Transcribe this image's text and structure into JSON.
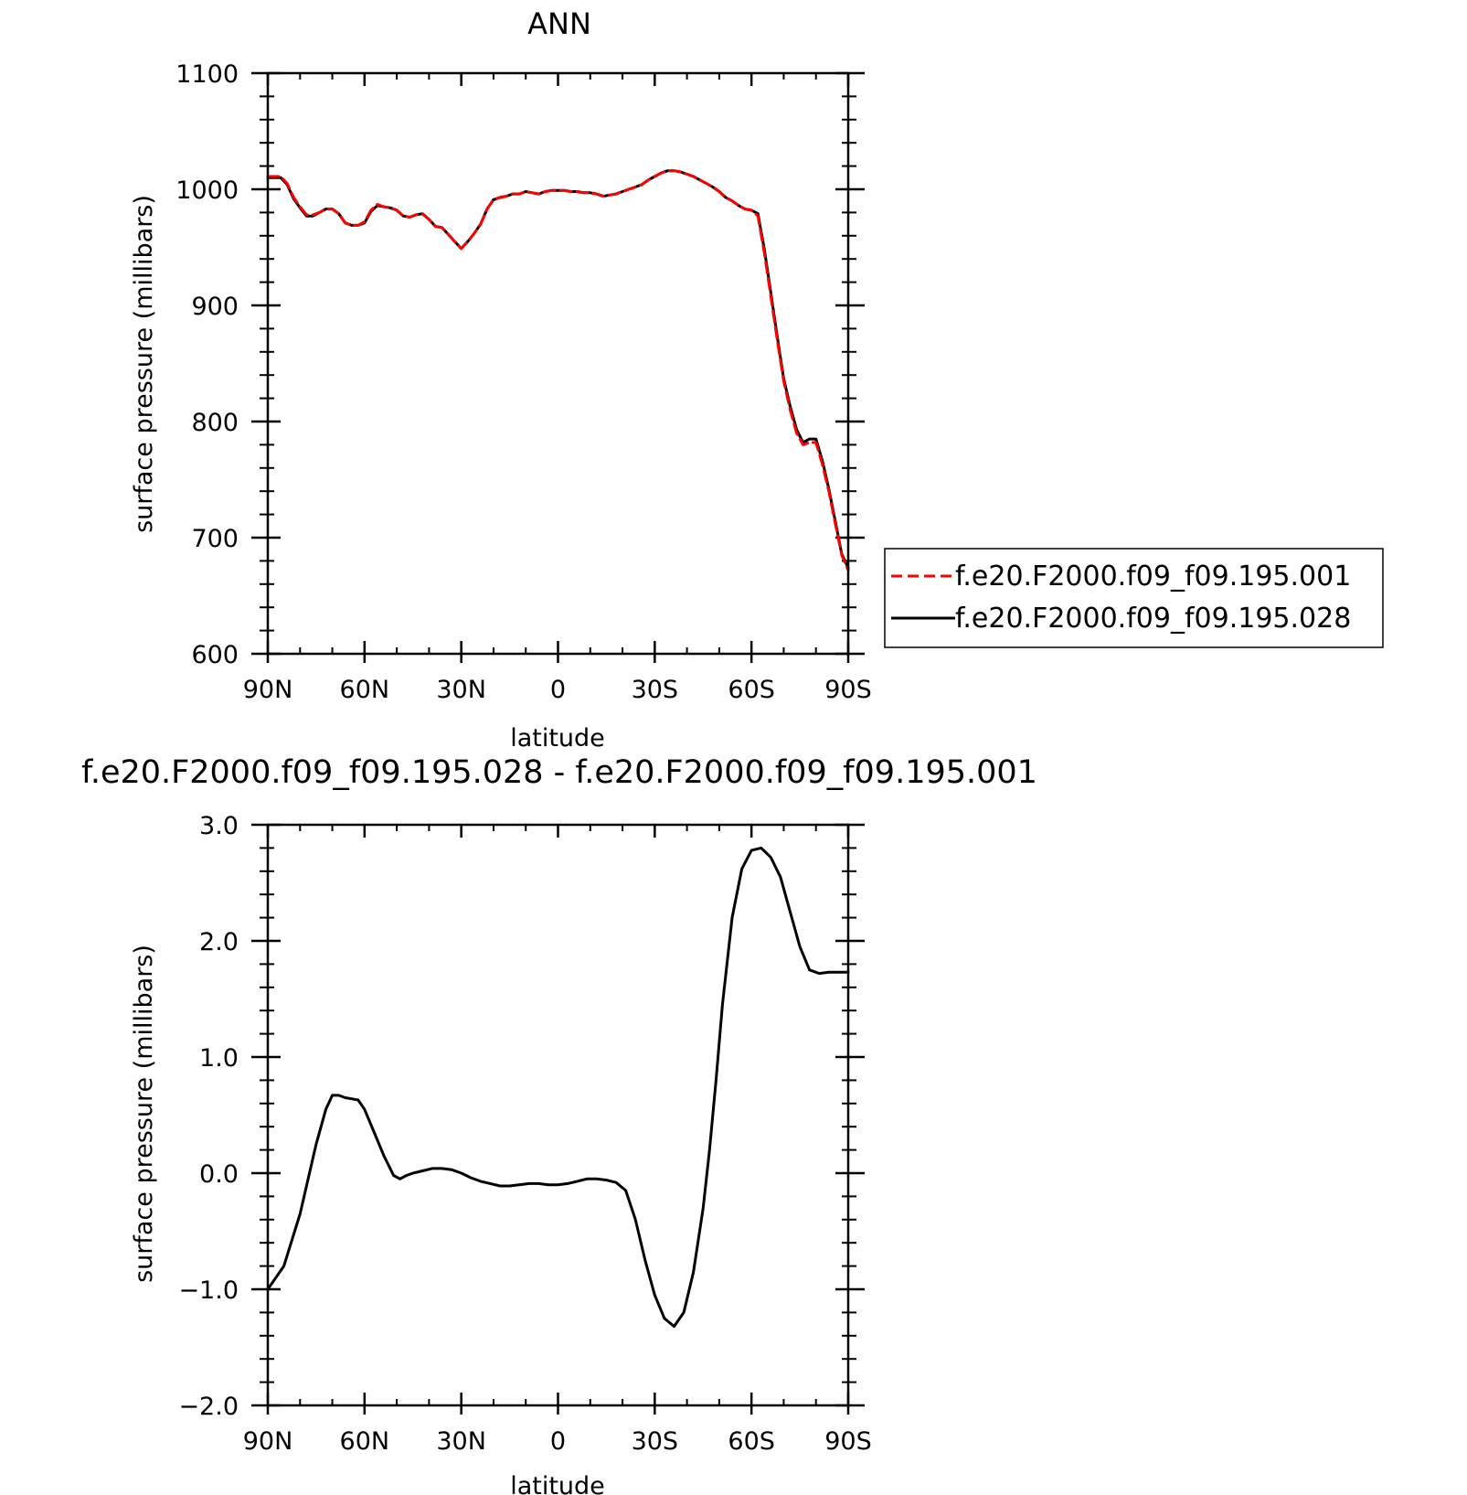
{
  "chart_data": [
    {
      "type": "line",
      "title": "ANN",
      "xlabel": "latitude",
      "ylabel": "surface pressure (millibars)",
      "xlim": [
        90,
        -90
      ],
      "ylim": [
        600,
        1100
      ],
      "x_ticks": [
        90,
        60,
        30,
        0,
        -30,
        -60,
        -90
      ],
      "x_tick_labels": [
        "90N",
        "60N",
        "30N",
        "0",
        "30S",
        "60S",
        "90S"
      ],
      "y_ticks": [
        600,
        700,
        800,
        900,
        1000,
        1100
      ],
      "y_tick_labels": [
        "600",
        "700",
        "800",
        "900",
        "1000",
        "1100"
      ],
      "grid": false,
      "legend_position": "right",
      "x": [
        90,
        88,
        86,
        84,
        82,
        80,
        78,
        76,
        74,
        72,
        70,
        68,
        66,
        64,
        62,
        60,
        58,
        56,
        54,
        52,
        50,
        48,
        46,
        44,
        42,
        40,
        38,
        36,
        34,
        32,
        30,
        28,
        26,
        24,
        22,
        20,
        18,
        16,
        14,
        12,
        10,
        8,
        6,
        4,
        2,
        0,
        -2,
        -4,
        -6,
        -8,
        -10,
        -12,
        -14,
        -16,
        -18,
        -20,
        -22,
        -24,
        -26,
        -28,
        -30,
        -32,
        -34,
        -36,
        -38,
        -40,
        -42,
        -44,
        -46,
        -48,
        -50,
        -52,
        -54,
        -56,
        -58,
        -60,
        -62,
        -64,
        -66,
        -68,
        -70,
        -72,
        -74,
        -76,
        -78,
        -80,
        -82,
        -84,
        -86,
        -88,
        -90
      ],
      "series": [
        {
          "name": "f.e20.F2000.f09_f09.195.001",
          "color": "#ff0000",
          "dash": "dashed",
          "values": [
            1011,
            1011,
            1011,
            1005,
            993,
            985,
            978,
            978,
            980,
            983,
            983,
            979,
            971,
            969,
            969,
            972,
            982,
            987,
            985,
            984,
            982,
            977,
            976,
            978,
            979,
            974,
            968,
            967,
            961,
            955,
            949,
            955,
            962,
            970,
            983,
            991,
            993,
            994,
            996,
            996,
            998,
            997,
            996,
            998,
            999,
            999,
            999,
            998,
            998,
            997,
            997,
            996,
            994,
            995,
            996,
            998,
            1000,
            1002,
            1004,
            1008,
            1011,
            1014,
            1016,
            1016,
            1015,
            1013,
            1011,
            1008,
            1005,
            1002,
            998,
            993,
            990,
            986,
            983,
            982,
            977,
            945,
            908,
            870,
            835,
            810,
            790,
            780,
            782,
            782,
            763,
            740,
            712,
            685,
            672
          ]
        },
        {
          "name": "f.e20.F2000.f09_f09.195.028",
          "color": "#000000",
          "dash": "solid",
          "values": [
            1010,
            1010,
            1010,
            1004,
            992,
            984,
            977,
            977,
            980,
            983,
            983,
            979,
            971,
            969,
            969,
            971,
            981,
            986,
            985,
            984,
            982,
            977,
            976,
            978,
            979,
            974,
            968,
            967,
            961,
            955,
            949,
            955,
            962,
            970,
            983,
            991,
            993,
            994,
            996,
            996,
            998,
            997,
            996,
            998,
            999,
            999,
            999,
            998,
            998,
            997,
            997,
            996,
            994,
            995,
            996,
            998,
            1000,
            1002,
            1004,
            1008,
            1011,
            1014,
            1016,
            1016,
            1015,
            1013,
            1011,
            1008,
            1005,
            1002,
            998,
            993,
            990,
            986,
            983,
            982,
            979,
            948,
            911,
            873,
            837,
            813,
            793,
            782,
            785,
            785,
            766,
            742,
            714,
            686,
            674
          ]
        }
      ]
    },
    {
      "type": "line",
      "title": "f.e20.F2000.f09_f09.195.028 - f.e20.F2000.f09_f09.195.001",
      "xlabel": "latitude",
      "ylabel": "surface pressure (millibars)",
      "xlim": [
        90,
        -90
      ],
      "ylim": [
        -2.0,
        3.0
      ],
      "x_ticks": [
        90,
        60,
        30,
        0,
        -30,
        -60,
        -90
      ],
      "x_tick_labels": [
        "90N",
        "60N",
        "30N",
        "0",
        "30S",
        "60S",
        "90S"
      ],
      "y_ticks": [
        -2.0,
        -1.0,
        0.0,
        1.0,
        2.0,
        3.0
      ],
      "y_tick_labels": [
        "−2.0",
        "−1.0",
        "0.0",
        "1.0",
        "2.0",
        "3.0"
      ],
      "grid": false,
      "x": [
        90,
        85,
        80,
        75,
        72,
        70,
        68,
        66,
        64,
        62,
        60,
        57,
        54,
        51,
        49,
        47,
        45,
        42,
        39,
        36,
        33,
        30,
        27,
        24,
        21,
        18,
        15,
        12,
        9,
        6,
        3,
        0,
        -3,
        -6,
        -9,
        -12,
        -15,
        -18,
        -21,
        -24,
        -27,
        -30,
        -33,
        -36,
        -39,
        -42,
        -45,
        -47,
        -49,
        -51,
        -54,
        -57,
        -60,
        -63,
        -66,
        -69,
        -72,
        -75,
        -78,
        -81,
        -84,
        -87,
        -90
      ],
      "series": [
        {
          "color": "#000000",
          "dash": "solid",
          "values": [
            -1.0,
            -0.8,
            -0.35,
            0.25,
            0.55,
            0.67,
            0.67,
            0.65,
            0.64,
            0.63,
            0.55,
            0.35,
            0.15,
            -0.02,
            -0.05,
            -0.02,
            0.0,
            0.02,
            0.04,
            0.04,
            0.03,
            0.0,
            -0.04,
            -0.07,
            -0.09,
            -0.11,
            -0.11,
            -0.1,
            -0.09,
            -0.09,
            -0.1,
            -0.1,
            -0.09,
            -0.07,
            -0.05,
            -0.05,
            -0.06,
            -0.08,
            -0.15,
            -0.4,
            -0.75,
            -1.05,
            -1.25,
            -1.32,
            -1.2,
            -0.85,
            -0.3,
            0.2,
            0.8,
            1.45,
            2.2,
            2.62,
            2.78,
            2.8,
            2.72,
            2.55,
            2.25,
            1.95,
            1.75,
            1.72,
            1.73,
            1.73,
            1.73
          ]
        }
      ]
    }
  ]
}
